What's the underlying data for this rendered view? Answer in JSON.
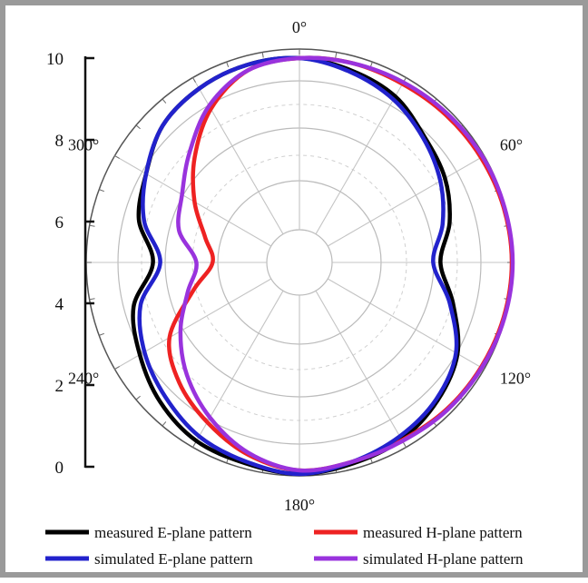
{
  "chart_data": {
    "type": "polar-line",
    "title": "",
    "radial_axis": {
      "ylim": [
        0,
        10
      ],
      "ticks": [
        0,
        2,
        4,
        6,
        8,
        10
      ],
      "tick_labels": [
        "0",
        "2",
        "4",
        "6",
        "8",
        "10"
      ]
    },
    "angular_axis": {
      "direction": "clockwise",
      "zero": "top",
      "labels": [
        {
          "angle": 0,
          "text": "0°"
        },
        {
          "angle": 60,
          "text": "60°"
        },
        {
          "angle": 120,
          "text": "120°"
        },
        {
          "angle": 180,
          "text": "180°"
        },
        {
          "angle": 240,
          "text": "240°"
        },
        {
          "angle": 300,
          "text": "300°"
        }
      ]
    },
    "grid": true,
    "legend_position": "bottom",
    "angles_deg": [
      0,
      15,
      30,
      45,
      60,
      75,
      90,
      105,
      120,
      135,
      150,
      165,
      180,
      195,
      210,
      225,
      240,
      255,
      270,
      285,
      300,
      315,
      330,
      345
    ],
    "series": [
      {
        "name": "measured E-plane pattern",
        "color": "#000000",
        "values": [
          9.5,
          9.2,
          8.8,
          8.0,
          7.5,
          6.8,
          6.0,
          7.0,
          8.3,
          9.0,
          9.5,
          9.7,
          9.9,
          9.7,
          9.6,
          9.1,
          8.4,
          7.7,
          6.3,
          7.4,
          8.0,
          8.9,
          9.3,
          9.5
        ]
      },
      {
        "name": "measured H-plane pattern",
        "color": "#ee2222",
        "values": [
          9.5,
          9.6,
          9.6,
          9.7,
          9.8,
          9.9,
          9.95,
          9.9,
          9.8,
          9.7,
          9.55,
          9.6,
          9.7,
          9.2,
          8.4,
          7.6,
          6.5,
          4.3,
          3.0,
          3.6,
          4.9,
          6.4,
          8.0,
          9.2
        ]
      },
      {
        "name": "simulated E-plane pattern",
        "color": "#2222cc",
        "values": [
          9.5,
          9.1,
          8.6,
          7.9,
          7.2,
          6.4,
          5.6,
          6.8,
          8.2,
          8.9,
          9.3,
          9.6,
          9.9,
          9.6,
          9.3,
          8.7,
          8.1,
          7.3,
          5.9,
          7.1,
          8.0,
          8.9,
          9.3,
          9.5
        ]
      },
      {
        "name": "simulated H-plane pattern",
        "color": "#9933dd",
        "values": [
          9.5,
          9.6,
          9.7,
          9.8,
          9.9,
          9.95,
          10.0,
          9.95,
          9.85,
          9.75,
          9.6,
          9.6,
          9.7,
          9.1,
          8.1,
          7.0,
          5.8,
          4.6,
          3.9,
          5.1,
          5.7,
          6.8,
          8.2,
          9.2
        ]
      }
    ]
  }
}
